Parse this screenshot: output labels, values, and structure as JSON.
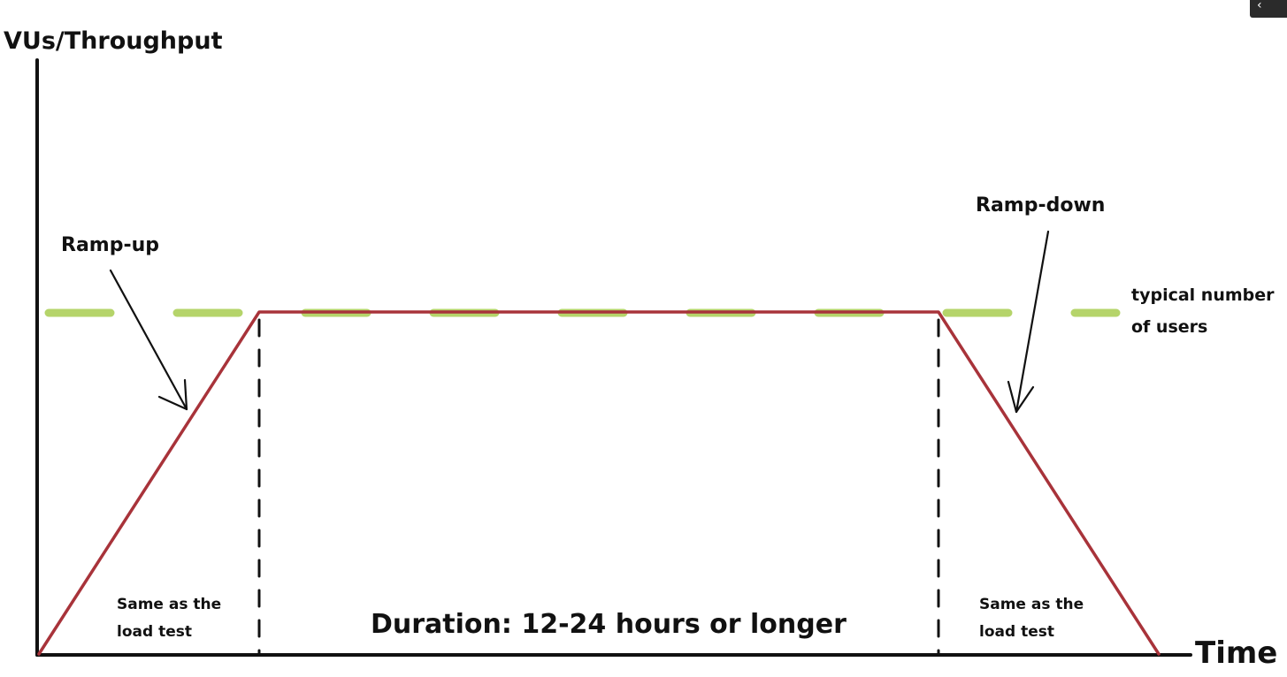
{
  "diagram": {
    "y_axis_label": "VUs/Throughput",
    "x_axis_label": "Time",
    "ramp_up_label": "Ramp-up",
    "ramp_down_label": "Ramp-down",
    "typical_users_label_line1": "typical number",
    "typical_users_label_line2": "of users",
    "left_note_line1": "Same as the",
    "left_note_line2": "load test",
    "right_note_line1": "Same as the",
    "right_note_line2": "load test",
    "duration_label": "Duration: 12-24 hours or longer"
  },
  "colors": {
    "load_profile": "#a8333a",
    "typical_users_dash": "#b5d46a",
    "axes": "#111111",
    "phase_dividers": "#111111",
    "annotation_arrows": "#111111"
  },
  "corner_control": {
    "icon": "chevron-left-icon",
    "glyph": "‹"
  }
}
